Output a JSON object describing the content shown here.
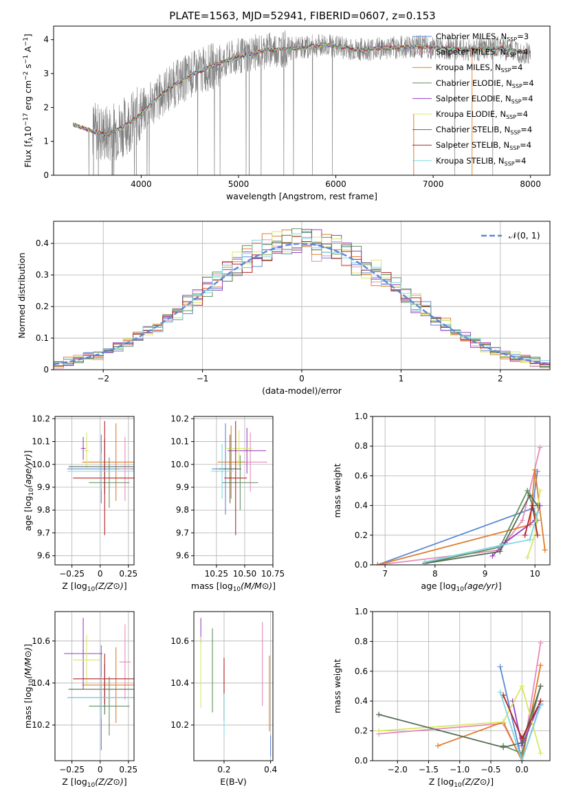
{
  "title": "PLATE=1563, MJD=52941, FIBERID=0607, z=0.153",
  "colors": {
    "Chabrier MILES": "#5b87d6",
    "Salpeter MILES": "#e58ab8",
    "Kroupa MILES": "#e07b2a",
    "Chabrier ELODIE": "#5f8f5f",
    "Salpeter ELODIE": "#9b3fbf",
    "Kroupa ELODIE": "#d7e85f",
    "Chabrier STELIB": "#556b55",
    "Salpeter STELIB": "#b22222",
    "Kroupa STELIB": "#7fd6e0",
    "data": "#808080",
    "normal": "#5b87d6"
  },
  "chart_data": [
    {
      "id": "spectrum",
      "type": "line",
      "xlabel": "wavelength [Angstrom, rest frame]",
      "ylabel": "Flux [f_λ 10^-17 erg cm^-2 s^-1 A^-1]",
      "xlim": [
        3100,
        8200
      ],
      "ylim": [
        0,
        4.4
      ],
      "xticks": [
        4000,
        5000,
        6000,
        7000,
        8000
      ],
      "yticks": [
        0,
        1,
        2,
        3,
        4
      ],
      "legend": [
        "Chabrier MILES, N_SSP=3",
        "Salpeter MILES, N_SSP=4",
        "Kroupa MILES, N_SSP=4",
        "Chabrier ELODIE, N_SSP=4",
        "Salpeter ELODIE, N_SSP=4",
        "Kroupa ELODIE, N_SSP=4",
        "Chabrier STELIB, N_SSP=4",
        "Salpeter STELIB, N_SSP=4",
        "Kroupa STELIB, N_SSP=4"
      ],
      "model_continuum": {
        "x": [
          3300,
          3500,
          3650,
          3800,
          3950,
          4100,
          4300,
          4500,
          4800,
          5000,
          5300,
          5600,
          5900,
          6200,
          6500,
          6800,
          7100,
          7400,
          7700,
          8000
        ],
        "y": [
          1.5,
          1.3,
          1.2,
          1.4,
          1.7,
          2.1,
          2.6,
          2.95,
          3.3,
          3.5,
          3.7,
          3.75,
          3.85,
          3.7,
          3.75,
          3.8,
          3.75,
          3.7,
          3.75,
          3.6
        ]
      }
    },
    {
      "id": "residuals",
      "type": "histogram",
      "xlabel": "(data-model)/error",
      "ylabel": "Normed distribution",
      "xlim": [
        -2.5,
        2.5
      ],
      "ylim": [
        0,
        0.47
      ],
      "xticks": [
        -2,
        -1,
        0,
        1,
        2
      ],
      "yticks": [
        0.0,
        0.1,
        0.2,
        0.3,
        0.4
      ],
      "legend": "𝒩(0, 1)"
    },
    {
      "id": "age_vs_Z",
      "type": "scatter",
      "xlabel": "Z [log10(Z/Z⊙)]",
      "ylabel": "age  [log10(age/yr)]",
      "xlim": [
        -0.4,
        0.3
      ],
      "ylim": [
        9.56,
        10.21
      ],
      "xticks": [
        -0.25,
        0.0,
        0.25
      ],
      "yticks": [
        9.6,
        9.7,
        9.8,
        9.9,
        10.0,
        10.1,
        10.2
      ],
      "points": [
        {
          "model": "Chabrier MILES",
          "x": 0.01,
          "xerr": 0.3,
          "y": 9.98,
          "yerr": 0.15
        },
        {
          "model": "Salpeter MILES",
          "x": 0.22,
          "xerr": 0.05,
          "y": 9.98,
          "yerr": 0.14
        },
        {
          "model": "Kroupa MILES",
          "x": 0.14,
          "xerr": 0.3,
          "y": 10.01,
          "yerr": 0.17
        },
        {
          "model": "Chabrier ELODIE",
          "x": 0.08,
          "xerr": 0.18,
          "y": 9.92,
          "yerr": 0.11
        },
        {
          "model": "Salpeter ELODIE",
          "x": -0.15,
          "xerr": 0.02,
          "y": 10.07,
          "yerr": 0.05
        },
        {
          "model": "Kroupa ELODIE",
          "x": -0.12,
          "xerr": 0.02,
          "y": 10.06,
          "yerr": 0.08
        },
        {
          "model": "Chabrier STELIB",
          "x": 0.04,
          "xerr": 0.32,
          "y": 9.99,
          "yerr": 0.12
        },
        {
          "model": "Salpeter STELIB",
          "x": 0.04,
          "xerr": 0.28,
          "y": 9.94,
          "yerr": 0.25
        },
        {
          "model": "Kroupa STELIB",
          "x": 0.01,
          "xerr": 0.3,
          "y": 9.97,
          "yerr": 0.08
        }
      ]
    },
    {
      "id": "age_vs_mass",
      "type": "scatter",
      "xlabel": "mass [log10(M/M⊙)]",
      "ylabel": "",
      "xlim": [
        10.05,
        10.75
      ],
      "ylim": [
        9.56,
        10.21
      ],
      "xticks": [
        10.25,
        10.5,
        10.75
      ],
      "yticks": [
        9.6,
        9.7,
        9.8,
        9.9,
        10.0,
        10.1,
        10.2
      ],
      "points": [
        {
          "model": "Chabrier MILES",
          "x": 10.33,
          "xerr": 0.12,
          "y": 9.98,
          "yerr": 0.2
        },
        {
          "model": "Salpeter MILES",
          "x": 10.55,
          "xerr": 0.15,
          "y": 10.01,
          "yerr": 0.13
        },
        {
          "model": "Kroupa MILES",
          "x": 10.38,
          "xerr": 0.12,
          "y": 10.01,
          "yerr": 0.16
        },
        {
          "model": "Chabrier ELODIE",
          "x": 10.46,
          "xerr": 0.16,
          "y": 9.92,
          "yerr": 0.12
        },
        {
          "model": "Salpeter ELODIE",
          "x": 10.52,
          "xerr": 0.17,
          "y": 10.06,
          "yerr": 0.1
        },
        {
          "model": "Kroupa ELODIE",
          "x": 10.45,
          "xerr": 0.12,
          "y": 10.07,
          "yerr": 0.08
        },
        {
          "model": "Chabrier STELIB",
          "x": 10.37,
          "xerr": 0.1,
          "y": 9.98,
          "yerr": 0.15
        },
        {
          "model": "Salpeter STELIB",
          "x": 10.42,
          "xerr": 0.1,
          "y": 9.94,
          "yerr": 0.25
        },
        {
          "model": "Kroupa STELIB",
          "x": 10.3,
          "xerr": 0.1,
          "y": 9.97,
          "yerr": 0.12
        }
      ]
    },
    {
      "id": "mass_weight_vs_age",
      "type": "line",
      "xlabel": "age  [log10(age/yr)]",
      "ylabel": "mass weight",
      "xlim": [
        6.75,
        10.3
      ],
      "ylim": [
        0.0,
        1.0
      ],
      "xticks": [
        7,
        8,
        9,
        10
      ],
      "yticks": [
        0.0,
        0.2,
        0.4,
        0.6,
        0.8,
        1.0
      ],
      "series": [
        {
          "model": "Chabrier MILES",
          "x": [
            6.85,
            9.95,
            10.05
          ],
          "y": [
            0.0,
            0.38,
            0.63
          ]
        },
        {
          "model": "Salpeter MILES",
          "x": [
            6.85,
            9.3,
            9.75,
            10.1
          ],
          "y": [
            0.0,
            0.1,
            0.3,
            0.79
          ]
        },
        {
          "model": "Kroupa MILES",
          "x": [
            6.85,
            9.9,
            10.0,
            10.2
          ],
          "y": [
            0.0,
            0.27,
            0.64,
            0.1
          ]
        },
        {
          "model": "Chabrier ELODIE",
          "x": [
            7.8,
            9.3,
            9.85,
            10.05
          ],
          "y": [
            0.01,
            0.12,
            0.5,
            0.3
          ]
        },
        {
          "model": "Salpeter ELODIE",
          "x": [
            9.15,
            9.4,
            10.0,
            10.1
          ],
          "y": [
            0.06,
            0.15,
            0.3,
            0.4
          ]
        },
        {
          "model": "Kroupa ELODIE",
          "x": [
            9.85,
            10.0,
            10.1
          ],
          "y": [
            0.05,
            0.2,
            0.5
          ]
        },
        {
          "model": "Chabrier STELIB",
          "x": [
            7.8,
            9.3,
            9.9,
            10.05
          ],
          "y": [
            0.01,
            0.09,
            0.47,
            0.4
          ]
        },
        {
          "model": "Salpeter STELIB",
          "x": [
            9.8,
            9.95,
            10.05
          ],
          "y": [
            0.2,
            0.4,
            0.2
          ]
        },
        {
          "model": "Kroupa STELIB",
          "x": [
            7.8,
            9.3,
            9.9,
            10.05
          ],
          "y": [
            0.02,
            0.13,
            0.17,
            0.35
          ]
        }
      ]
    },
    {
      "id": "mass_vs_Z",
      "type": "scatter",
      "xlabel": "Z [log10(Z/Z⊙)]",
      "ylabel": "mass [log10(M/M⊙)]",
      "xlim": [
        -0.4,
        0.3
      ],
      "ylim": [
        10.03,
        10.74
      ],
      "xticks": [
        -0.25,
        0.0,
        0.25
      ],
      "yticks": [
        10.2,
        10.4,
        10.6
      ],
      "points": [
        {
          "model": "Chabrier MILES",
          "x": 0.01,
          "xerr": 0.3,
          "y": 10.33,
          "yerr": 0.25
        },
        {
          "model": "Salpeter MILES",
          "x": 0.22,
          "xerr": 0.05,
          "y": 10.5,
          "yerr": 0.18
        },
        {
          "model": "Kroupa MILES",
          "x": 0.14,
          "xerr": 0.3,
          "y": 10.39,
          "yerr": 0.18
        },
        {
          "model": "Chabrier ELODIE",
          "x": 0.08,
          "xerr": 0.18,
          "y": 10.29,
          "yerr": 0.14
        },
        {
          "model": "Salpeter ELODIE",
          "x": -0.15,
          "xerr": 0.17,
          "y": 10.54,
          "yerr": 0.17
        },
        {
          "model": "Kroupa ELODIE",
          "x": -0.12,
          "xerr": 0.12,
          "y": 10.51,
          "yerr": 0.12
        },
        {
          "model": "Chabrier STELIB",
          "x": 0.04,
          "xerr": 0.32,
          "y": 10.37,
          "yerr": 0.12
        },
        {
          "model": "Salpeter STELIB",
          "x": 0.04,
          "xerr": 0.28,
          "y": 10.42,
          "yerr": 0.12
        },
        {
          "model": "Kroupa STELIB",
          "x": 0.01,
          "xerr": 0.3,
          "y": 10.33,
          "yerr": 0.1
        }
      ]
    },
    {
      "id": "mass_vs_ebv",
      "type": "scatter",
      "xlabel": "E(B-V)",
      "ylabel": "",
      "xlim": [
        0.07,
        0.41
      ],
      "ylim": [
        10.03,
        10.74
      ],
      "xticks": [
        0.2,
        0.4
      ],
      "yticks": [
        10.2,
        10.4,
        10.6
      ],
      "points": [
        {
          "model": "Chabrier MILES",
          "x": 0.4,
          "y": 10.1,
          "yerr": 0.05
        },
        {
          "model": "Salpeter MILES",
          "x": 0.365,
          "y": 10.49,
          "yerr": 0.2
        },
        {
          "model": "Kroupa MILES",
          "x": 0.395,
          "y": 10.35,
          "yerr": 0.18
        },
        {
          "model": "Chabrier ELODIE",
          "x": 0.15,
          "y": 10.46,
          "yerr": 0.2
        },
        {
          "model": "Salpeter ELODIE",
          "x": 0.1,
          "y": 10.65,
          "yerr": 0.06
        },
        {
          "model": "Kroupa ELODIE",
          "x": 0.1,
          "y": 10.45,
          "yerr": 0.17
        },
        {
          "model": "Chabrier STELIB",
          "x": 0.2,
          "y": 10.35,
          "yerr": 0.13
        },
        {
          "model": "Salpeter STELIB",
          "x": 0.2,
          "y": 10.37,
          "yerr": 0.15
        },
        {
          "model": "Kroupa STELIB",
          "x": 0.2,
          "y": 10.25,
          "yerr": 0.1
        }
      ]
    },
    {
      "id": "mass_weight_vs_Z",
      "type": "line",
      "xlabel": "Z [log10(Z/Z⊙)]",
      "ylabel": "mass weight",
      "xlim": [
        -2.4,
        0.45
      ],
      "ylim": [
        0.0,
        1.0
      ],
      "xticks": [
        -2.0,
        -1.5,
        -1.0,
        -0.5,
        0.0
      ],
      "yticks": [
        0.0,
        0.2,
        0.4,
        0.6,
        0.8,
        1.0
      ],
      "series": [
        {
          "model": "Chabrier MILES",
          "x": [
            -0.35,
            0.0,
            0.3
          ],
          "y": [
            0.63,
            0.0,
            0.38
          ]
        },
        {
          "model": "Salpeter MILES",
          "x": [
            -2.3,
            -0.3,
            0.0,
            0.3
          ],
          "y": [
            0.18,
            0.25,
            0.0,
            0.79
          ]
        },
        {
          "model": "Kroupa MILES",
          "x": [
            -1.35,
            -0.3,
            0.0,
            0.3
          ],
          "y": [
            0.1,
            0.26,
            0.0,
            0.64
          ]
        },
        {
          "model": "Chabrier ELODIE",
          "x": [
            -0.3,
            0.0,
            0.3
          ],
          "y": [
            0.1,
            0.05,
            0.5
          ]
        },
        {
          "model": "Salpeter ELODIE",
          "x": [
            -0.15,
            0.0,
            0.3
          ],
          "y": [
            0.4,
            0.1,
            0.4
          ]
        },
        {
          "model": "Kroupa ELODIE",
          "x": [
            -2.3,
            -0.3,
            0.0,
            0.3
          ],
          "y": [
            0.2,
            0.26,
            0.5,
            0.05
          ]
        },
        {
          "model": "Chabrier STELIB",
          "x": [
            -2.3,
            -0.3,
            0.0,
            0.3
          ],
          "y": [
            0.31,
            0.09,
            0.12,
            0.5
          ]
        },
        {
          "model": "Salpeter STELIB",
          "x": [
            -0.3,
            0.0,
            0.3
          ],
          "y": [
            0.44,
            0.15,
            0.4
          ]
        },
        {
          "model": "Kroupa STELIB",
          "x": [
            -0.35,
            0.0,
            0.3
          ],
          "y": [
            0.46,
            0.0,
            0.37
          ]
        }
      ]
    }
  ]
}
